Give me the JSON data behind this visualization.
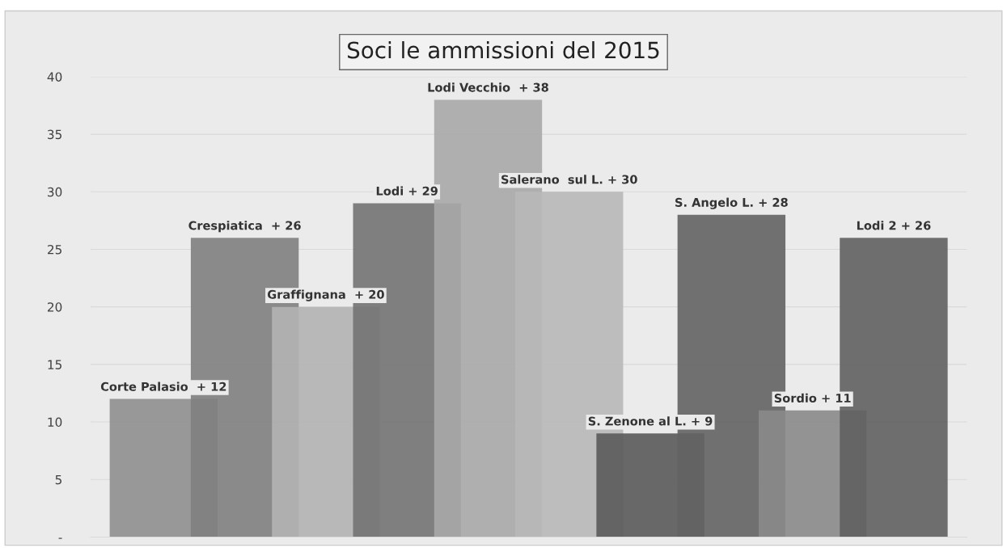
{
  "chart_data": {
    "type": "bar",
    "title": "Soci le ammissioni del 2015",
    "categories": [
      null,
      null,
      null,
      null,
      null,
      null,
      null,
      null,
      null,
      null
    ],
    "values": [
      12,
      26,
      20,
      29,
      38,
      30,
      9,
      28,
      11,
      26
    ],
    "colors": [
      "#8f8f8f",
      "#808080",
      "#b3b3b3",
      "#737373",
      "#a8a8a8",
      "#b8b8b8",
      "#5a5a5a",
      "#636363",
      "#8a8a8a",
      "#606060"
    ],
    "value_labels": [
      "Corte Palasio  + 12",
      "Crespiatica  + 26",
      "Graffignana  + 20",
      "Lodi + 29",
      "Lodi Vecchio  + 38",
      "Salerano  sul L. + 30",
      "S. Zenone al L. + 9",
      "S. Angelo L. + 28",
      "Sordio + 11",
      "Lodi 2 + 26"
    ],
    "ylim": [
      0,
      40
    ],
    "yticks": [
      {
        "value": 0,
        "label": "-"
      },
      5,
      10,
      15,
      20,
      25,
      30,
      35,
      40
    ],
    "grid": "y",
    "tick_labels": "y"
  }
}
